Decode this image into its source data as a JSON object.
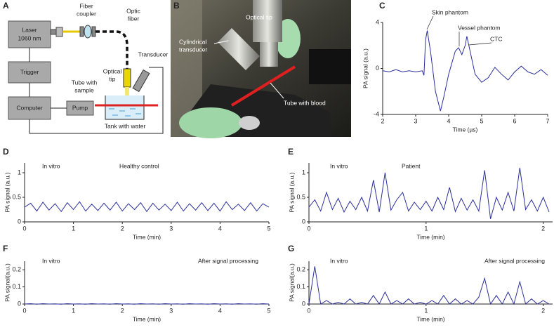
{
  "panel_labels": [
    "A",
    "B",
    "C",
    "D",
    "E",
    "F",
    "G"
  ],
  "diagram": {
    "laser": [
      "Laser",
      "1060 nm"
    ],
    "fiber_coupler": [
      "Fiber",
      "coupler"
    ],
    "optic_fiber": [
      "Optic",
      "fiber"
    ],
    "optical_tip": [
      "Optical",
      "tip"
    ],
    "transducer": "Transducer",
    "tube": [
      "Tube with",
      "sample"
    ],
    "trigger": "Trigger",
    "computer": "Computer",
    "pump": "Pump",
    "tank": "Tank with water"
  },
  "photo": {
    "optical_tip": "Optical tip",
    "transducer": [
      "Cylindrical",
      "transducer"
    ],
    "tube": "Tube with blood"
  },
  "chart_data": [
    {
      "type": "line",
      "color": "#2b2f9b",
      "y_label": "PA signal (a.u.)",
      "x_label": "Time (µs)",
      "annotations": [
        "Skin phantom",
        "Vessel phantom",
        "CTC"
      ],
      "xlim": [
        2,
        7
      ],
      "xticks": [
        2,
        3,
        4,
        5,
        6,
        7
      ],
      "ylim": [
        -4,
        4
      ],
      "yticks": [
        -4,
        0,
        4
      ],
      "x": [
        2,
        2.2,
        2.4,
        2.6,
        2.8,
        3,
        3.2,
        3.25,
        3.3,
        3.35,
        3.45,
        3.6,
        3.75,
        3.85,
        4,
        4.1,
        4.2,
        4.3,
        4.4,
        4.5,
        4.55,
        4.65,
        4.8,
        5,
        5.2,
        5.4,
        5.6,
        5.8,
        6,
        6.2,
        6.4,
        6.6,
        6.8,
        7
      ],
      "values": [
        -0.2,
        -0.3,
        -0.1,
        -0.3,
        -0.2,
        -0.3,
        -0.2,
        -0.6,
        2.5,
        3.3,
        1.5,
        -2,
        -3.7,
        -2.5,
        -0.5,
        0.5,
        1.5,
        1.8,
        1.2,
        2,
        2.8,
        1.5,
        -0.5,
        -1.2,
        -0.8,
        0.1,
        -0.5,
        -1,
        -0.3,
        0.2,
        -0.3,
        -0.5,
        -0.1,
        -0.6
      ]
    },
    {
      "type": "line",
      "color": "#2b2f9b",
      "y_label": "PA signal (a.u.)",
      "x_label": "Time (min)",
      "annotations": [
        "In vitro",
        "Healthy control"
      ],
      "xlim": [
        0,
        5
      ],
      "xticks": [
        0,
        1,
        2,
        3,
        4,
        5
      ],
      "ylim": [
        0,
        1.2
      ],
      "yticks": [
        0,
        0.5,
        1
      ],
      "x": [
        0,
        0.125,
        0.25,
        0.375,
        0.5,
        0.625,
        0.75,
        0.875,
        1,
        1.125,
        1.25,
        1.375,
        1.5,
        1.625,
        1.75,
        1.875,
        2,
        2.125,
        2.25,
        2.375,
        2.5,
        2.625,
        2.75,
        2.875,
        3,
        3.125,
        3.25,
        3.375,
        3.5,
        3.625,
        3.75,
        3.875,
        4,
        4.125,
        4.25,
        4.375,
        4.5,
        4.625,
        4.75,
        4.875,
        5
      ],
      "values": [
        0.3,
        0.38,
        0.22,
        0.4,
        0.24,
        0.37,
        0.21,
        0.39,
        0.25,
        0.41,
        0.22,
        0.36,
        0.23,
        0.38,
        0.24,
        0.4,
        0.22,
        0.37,
        0.25,
        0.39,
        0.21,
        0.38,
        0.24,
        0.36,
        0.23,
        0.4,
        0.22,
        0.37,
        0.24,
        0.39,
        0.23,
        0.38,
        0.22,
        0.41,
        0.25,
        0.36,
        0.23,
        0.39,
        0.22,
        0.37,
        0.3
      ]
    },
    {
      "type": "line",
      "color": "#2b2f9b",
      "y_label": "PA signal (a.u.)",
      "x_label": "Time (min)",
      "annotations": [
        "In vitro",
        "Patient"
      ],
      "xlim": [
        0,
        2.08
      ],
      "xticks": [
        0,
        1,
        2
      ],
      "ylim": [
        0,
        1.2
      ],
      "yticks": [
        0,
        0.5,
        1
      ],
      "x": [
        0,
        0.05,
        0.1,
        0.15,
        0.2,
        0.25,
        0.3,
        0.35,
        0.4,
        0.45,
        0.5,
        0.55,
        0.6,
        0.65,
        0.7,
        0.75,
        0.8,
        0.85,
        0.9,
        0.95,
        1,
        1.05,
        1.1,
        1.15,
        1.2,
        1.25,
        1.3,
        1.35,
        1.4,
        1.45,
        1.5,
        1.55,
        1.6,
        1.65,
        1.7,
        1.75,
        1.8,
        1.85,
        1.9,
        1.95,
        2,
        2.05
      ],
      "values": [
        0.3,
        0.45,
        0.22,
        0.6,
        0.25,
        0.48,
        0.2,
        0.42,
        0.25,
        0.5,
        0.22,
        0.85,
        0.2,
        1,
        0.24,
        0.45,
        0.6,
        0.22,
        0.4,
        0.25,
        0.42,
        0.22,
        0.5,
        0.25,
        0.7,
        0.21,
        0.48,
        0.24,
        0.45,
        0.22,
        1.05,
        0.06,
        0.5,
        0.24,
        0.6,
        0.22,
        1.1,
        0.25,
        0.45,
        0.22,
        0.5,
        0.2
      ]
    },
    {
      "type": "line",
      "color": "#2b2f9b",
      "y_label": "PA signal(a.u.)",
      "x_label": "Time (min)",
      "annotations": [
        "In vitro",
        "After signal processing"
      ],
      "xlim": [
        0,
        5
      ],
      "xticks": [
        0,
        1,
        2,
        3,
        4,
        5
      ],
      "ylim": [
        0,
        0.25
      ],
      "yticks": [
        0,
        0.1,
        0.2
      ],
      "x": [
        0,
        0.125,
        0.25,
        0.375,
        0.5,
        0.625,
        0.75,
        0.875,
        1,
        1.125,
        1.25,
        1.375,
        1.5,
        1.625,
        1.75,
        1.875,
        2,
        2.125,
        2.25,
        2.375,
        2.5,
        2.625,
        2.75,
        2.875,
        3,
        3.125,
        3.25,
        3.375,
        3.5,
        3.625,
        3.75,
        3.875,
        4,
        4.125,
        4.25,
        4.375,
        4.5,
        4.625,
        4.75,
        4.875,
        5
      ],
      "values": [
        0,
        0.002,
        -0.001,
        0.002,
        0,
        0.001,
        -0.001,
        0.002,
        0,
        0.001,
        -0.001,
        0.002,
        0,
        0.001,
        -0.001,
        0.002,
        0,
        0.001,
        -0.001,
        0.002,
        0,
        0.001,
        -0.001,
        0.002,
        0,
        0.001,
        -0.001,
        0.002,
        0,
        0.001,
        -0.001,
        0.002,
        0,
        0.001,
        -0.001,
        0.002,
        0,
        0.001,
        -0.001,
        0.002,
        0
      ]
    },
    {
      "type": "line",
      "color": "#2b2f9b",
      "y_label": "PA signal(a.u.)",
      "x_label": "Time (min)",
      "annotations": [
        "In vitro",
        "After signal processing"
      ],
      "xlim": [
        0,
        2.08
      ],
      "xticks": [
        0,
        1,
        2
      ],
      "ylim": [
        0,
        0.25
      ],
      "yticks": [
        0,
        0.1,
        0.2
      ],
      "x": [
        0,
        0.05,
        0.1,
        0.15,
        0.2,
        0.25,
        0.3,
        0.35,
        0.4,
        0.45,
        0.5,
        0.55,
        0.6,
        0.65,
        0.7,
        0.75,
        0.8,
        0.85,
        0.9,
        0.95,
        1,
        1.05,
        1.1,
        1.15,
        1.2,
        1.25,
        1.3,
        1.35,
        1.4,
        1.45,
        1.5,
        1.55,
        1.6,
        1.65,
        1.7,
        1.75,
        1.8,
        1.85,
        1.9,
        1.95,
        2,
        2.05
      ],
      "values": [
        0,
        0.22,
        0,
        0.02,
        0,
        0.01,
        0,
        0.03,
        0,
        0.01,
        0,
        0.05,
        0,
        0.07,
        0,
        0.02,
        0,
        0.03,
        0,
        0.01,
        0,
        0.02,
        0,
        0.05,
        0,
        0.03,
        0,
        0.02,
        0,
        0.04,
        0.15,
        0,
        0.05,
        0,
        0.07,
        0,
        0.13,
        0,
        0.03,
        0,
        0.02,
        0
      ]
    }
  ]
}
